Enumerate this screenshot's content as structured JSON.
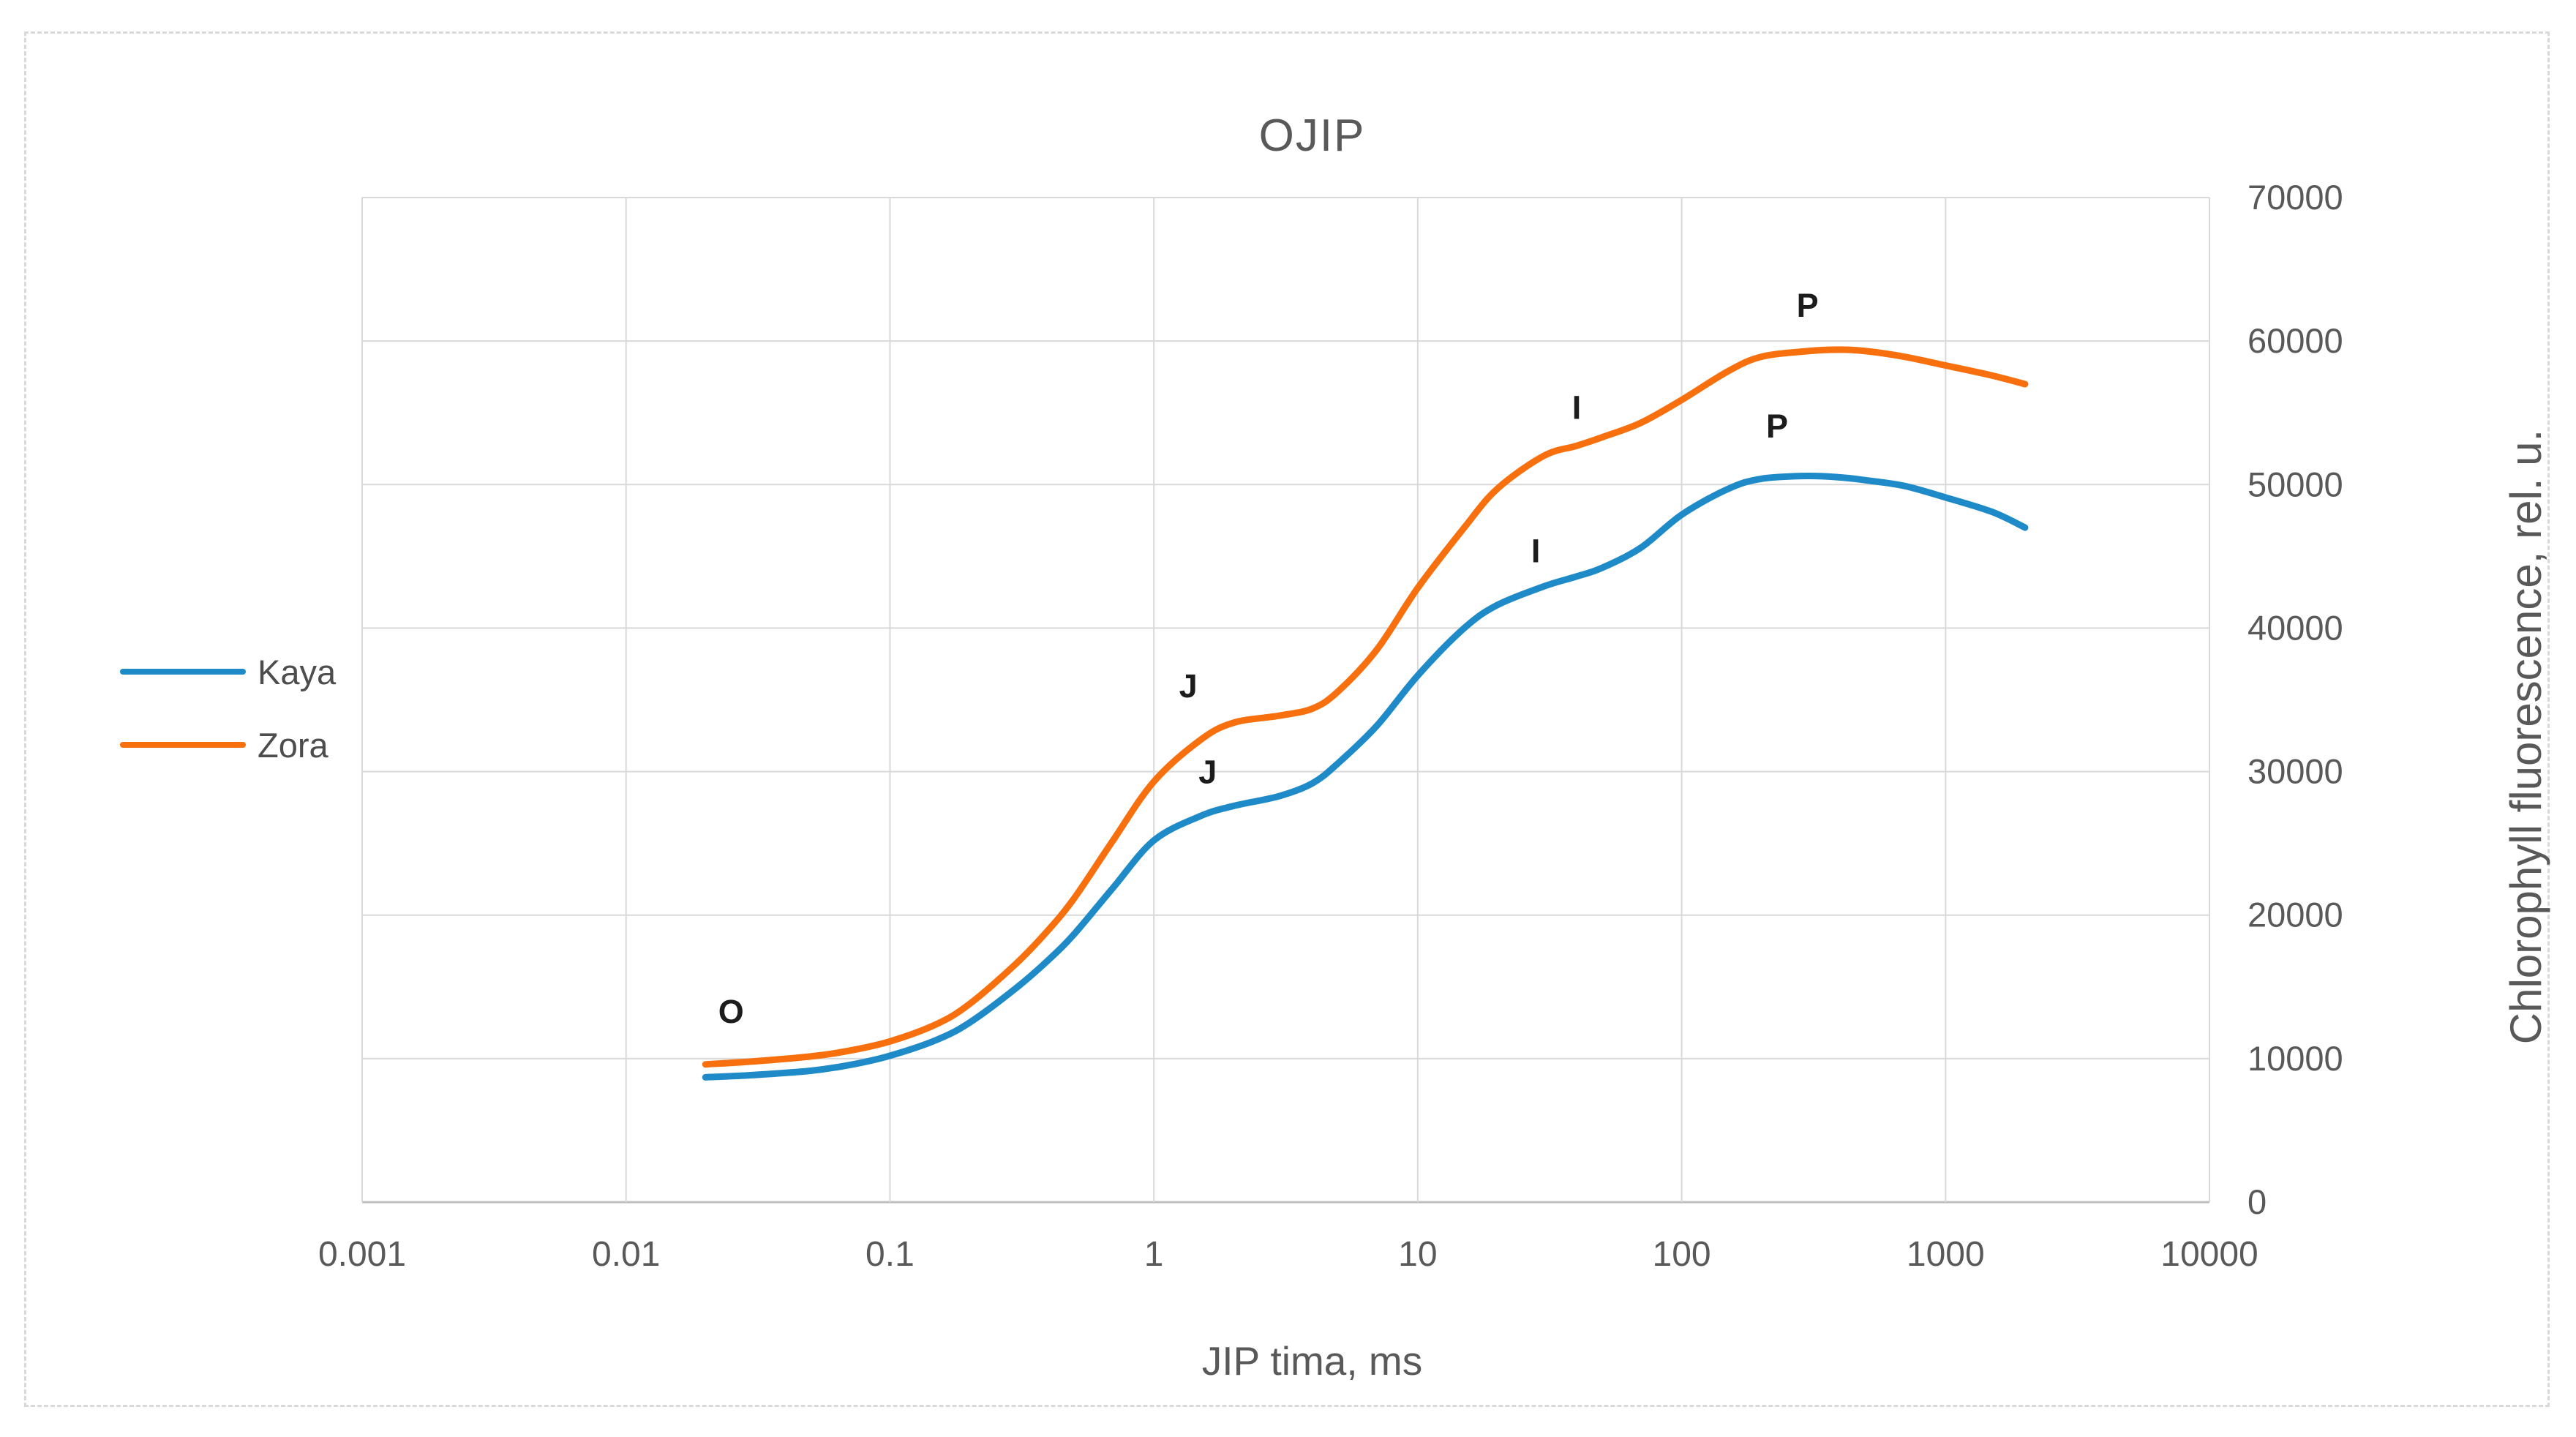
{
  "chart": {
    "frame_style": "dashed-light-gray",
    "background": "#ffffff"
  },
  "colors": {
    "kaya_line": "#1e8bc8",
    "zora_line": "#f8700e",
    "gridline": "#d9d9d9",
    "axis_line": "#bfbfbf",
    "axis_text": "#595959",
    "stage_label_text": "#1c1c1c"
  },
  "chart_data": {
    "type": "line",
    "title": "OJIP",
    "xlabel": "JIP tima, ms",
    "ylabel": "Chlorophyll fluorescence, rel. u.",
    "xscale": "log",
    "xlim": [
      0.001,
      10000
    ],
    "ylim": [
      0,
      70000
    ],
    "grid": true,
    "legend_position": "left-middle",
    "x_ticks": [
      "0.001",
      "0.01",
      "0.1",
      "1",
      "10",
      "100",
      "1000",
      "10000"
    ],
    "y_ticks": [
      "0",
      "10000",
      "20000",
      "30000",
      "40000",
      "50000",
      "60000",
      "70000"
    ],
    "x": [
      0.02,
      0.03,
      0.05,
      0.07,
      0.1,
      0.15,
      0.2,
      0.3,
      0.4,
      0.5,
      0.7,
      1,
      1.5,
      2,
      3,
      4,
      5,
      7,
      10,
      15,
      20,
      30,
      40,
      50,
      70,
      100,
      150,
      200,
      300,
      400,
      500,
      700,
      1000,
      1500,
      2000
    ],
    "series": [
      {
        "name": "Kaya",
        "color": "#1e8bc8",
        "values": [
          8700,
          8850,
          9150,
          9550,
          10200,
          11300,
          12500,
          14900,
          16900,
          18700,
          21900,
          25200,
          26900,
          27600,
          28300,
          29200,
          30600,
          33200,
          36700,
          40000,
          41600,
          42900,
          43600,
          44200,
          45600,
          47900,
          49700,
          50400,
          50600,
          50500,
          50300,
          49900,
          49100,
          48100,
          47000
        ]
      },
      {
        "name": "Zora",
        "color": "#f8700e",
        "values": [
          9600,
          9800,
          10150,
          10550,
          11200,
          12400,
          13800,
          16600,
          19000,
          21200,
          25200,
          29300,
          32200,
          33400,
          33900,
          34400,
          35600,
          38500,
          42800,
          47000,
          49700,
          52000,
          52700,
          53300,
          54300,
          55900,
          57900,
          58900,
          59300,
          59400,
          59300,
          58900,
          58300,
          57600,
          57000
        ]
      }
    ],
    "annotations": [
      {
        "text": "O",
        "series": "shared",
        "x": 0.025,
        "y": 13300
      },
      {
        "text": "J",
        "series": "Zora",
        "x": 1.35,
        "y": 36000
      },
      {
        "text": "J",
        "series": "Kaya",
        "x": 1.6,
        "y": 30000
      },
      {
        "text": "I",
        "series": "Zora",
        "x": 40,
        "y": 55400
      },
      {
        "text": "I",
        "series": "Kaya",
        "x": 28,
        "y": 45400
      },
      {
        "text": "P",
        "series": "Zora",
        "x": 300,
        "y": 62500
      },
      {
        "text": "P",
        "series": "Kaya",
        "x": 230,
        "y": 54100
      }
    ]
  }
}
